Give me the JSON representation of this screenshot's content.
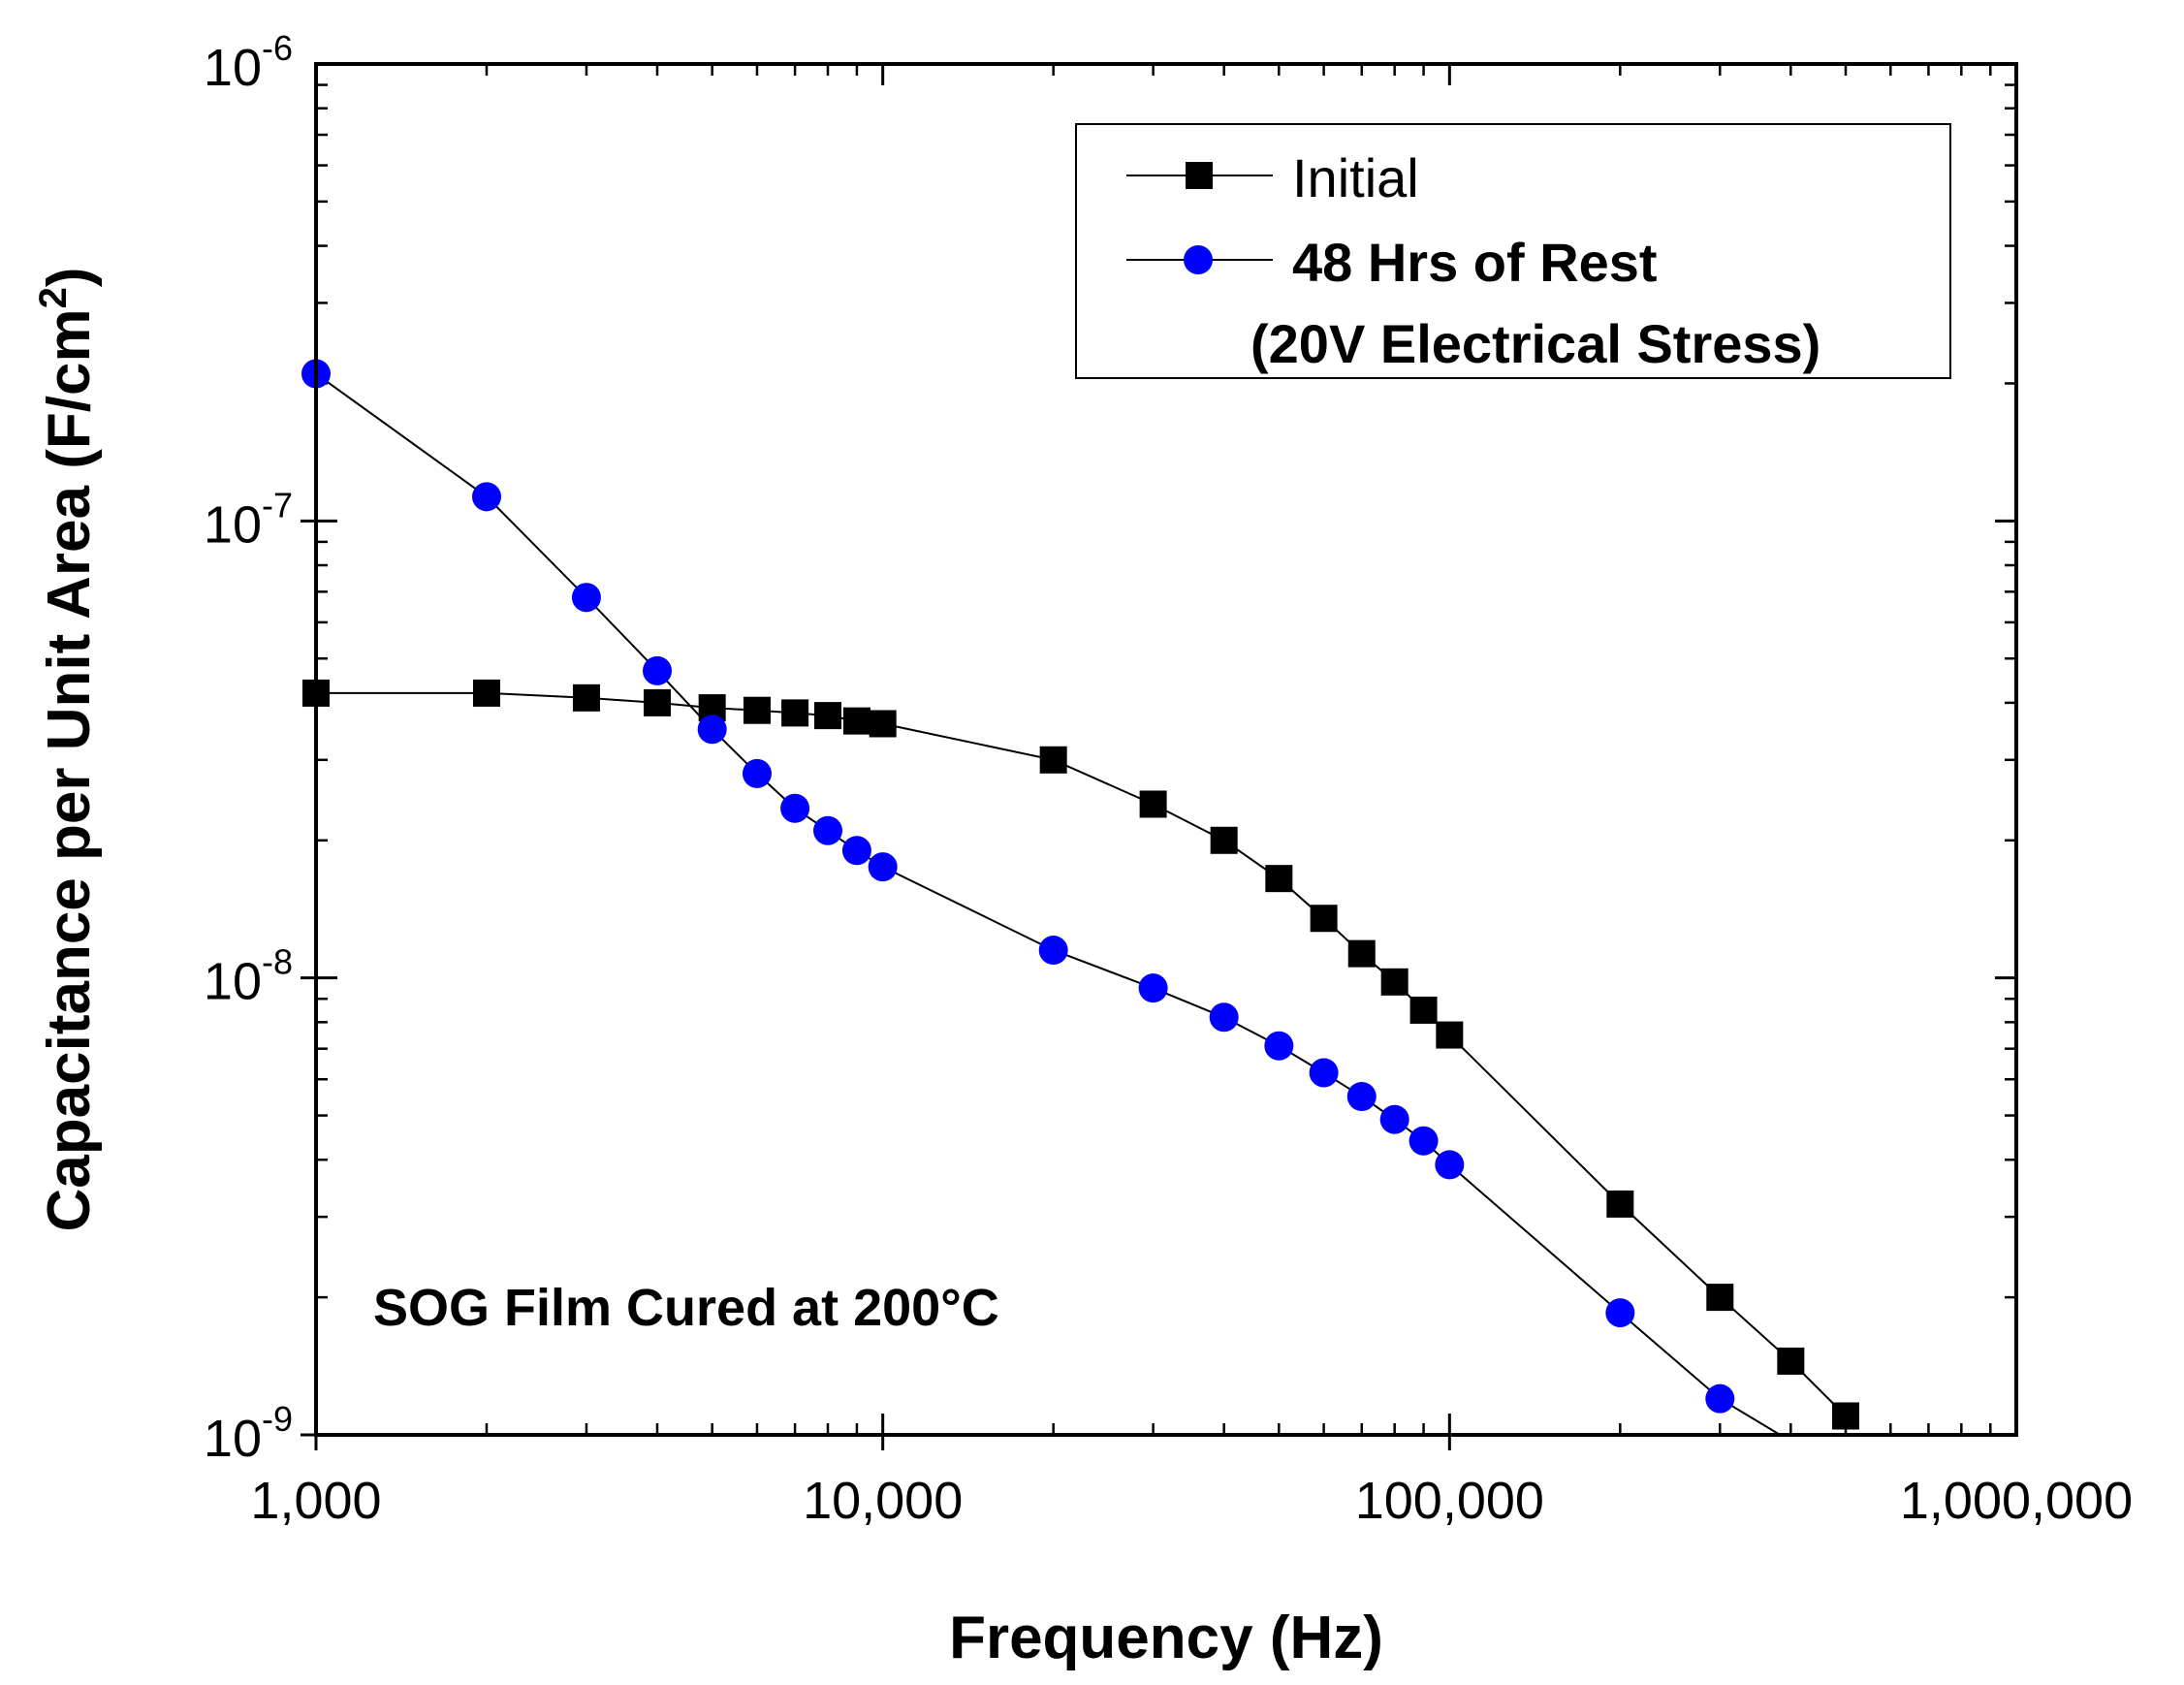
{
  "chart_data": {
    "type": "line",
    "xlabel": "Frequency (Hz)",
    "ylabel": "Capacitance per Unit Area (F/cm",
    "ylabel_sup": "2",
    "ylabel_end": ")",
    "xscale": "log",
    "yscale": "log",
    "xlim": [
      1000,
      1000000
    ],
    "ylim": [
      1e-09,
      1e-06
    ],
    "x_ticks": [
      {
        "value": 1000,
        "label": "1,000"
      },
      {
        "value": 10000,
        "label": "10,000"
      },
      {
        "value": 100000,
        "label": "100,000"
      },
      {
        "value": 1000000,
        "label": "1,000,000"
      }
    ],
    "y_ticks": [
      {
        "value": 1e-09,
        "base": "10",
        "exp": "-9"
      },
      {
        "value": 1e-08,
        "base": "10",
        "exp": "-8"
      },
      {
        "value": 1e-07,
        "base": "10",
        "exp": "-7"
      },
      {
        "value": 1e-06,
        "base": "10",
        "exp": "-6"
      }
    ],
    "annotation": "SOG Film Cured at 200°C",
    "legend_position": "top-right",
    "series": [
      {
        "name": "Initial",
        "marker": "square",
        "color": "#000000",
        "points": [
          [
            1000,
            4.2e-08
          ],
          [
            2000,
            4.2e-08
          ],
          [
            3000,
            4.1e-08
          ],
          [
            4000,
            4e-08
          ],
          [
            5000,
            3.9e-08
          ],
          [
            6000,
            3.85e-08
          ],
          [
            7000,
            3.8e-08
          ],
          [
            8000,
            3.75e-08
          ],
          [
            9000,
            3.65e-08
          ],
          [
            10000,
            3.6e-08
          ],
          [
            20000,
            3e-08
          ],
          [
            30000,
            2.4e-08
          ],
          [
            40000,
            2e-08
          ],
          [
            50000,
            1.65e-08
          ],
          [
            60000,
            1.35e-08
          ],
          [
            70000,
            1.13e-08
          ],
          [
            80000,
            9.8e-09
          ],
          [
            90000,
            8.5e-09
          ],
          [
            100000,
            7.5e-09
          ],
          [
            200000,
            3.2e-09
          ],
          [
            300000,
            2e-09
          ],
          [
            400000,
            1.45e-09
          ],
          [
            500000,
            1.1e-09
          ]
        ]
      },
      {
        "name": "48 Hrs of Rest",
        "name_line2": "(20V Electrical Stress)",
        "marker": "circle",
        "color": "#0000ff",
        "points": [
          [
            1000,
            2.1e-07
          ],
          [
            2000,
            1.13e-07
          ],
          [
            3000,
            6.8e-08
          ],
          [
            4000,
            4.7e-08
          ],
          [
            5000,
            3.5e-08
          ],
          [
            6000,
            2.8e-08
          ],
          [
            7000,
            2.35e-08
          ],
          [
            8000,
            2.1e-08
          ],
          [
            9000,
            1.9e-08
          ],
          [
            10000,
            1.75e-08
          ],
          [
            20000,
            1.15e-08
          ],
          [
            30000,
            9.5e-09
          ],
          [
            40000,
            8.2e-09
          ],
          [
            50000,
            7.1e-09
          ],
          [
            60000,
            6.2e-09
          ],
          [
            70000,
            5.5e-09
          ],
          [
            80000,
            4.9e-09
          ],
          [
            90000,
            4.4e-09
          ],
          [
            100000,
            3.9e-09
          ],
          [
            200000,
            1.85e-09
          ],
          [
            300000,
            1.2e-09
          ]
        ],
        "line_extends_to": [
          383000,
          1e-09
        ]
      }
    ]
  }
}
